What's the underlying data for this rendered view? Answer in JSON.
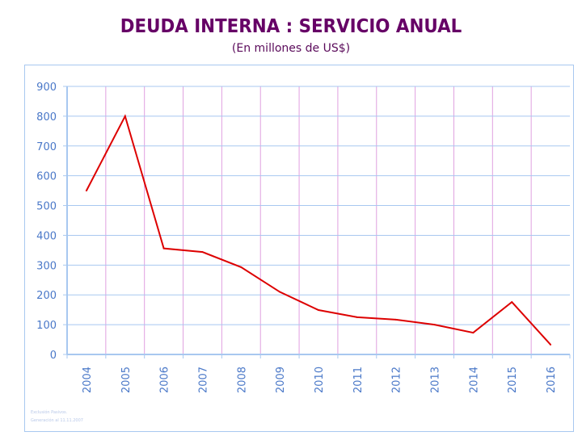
{
  "chart_data": {
    "type": "line",
    "title": "DEUDA INTERNA : SERVICIO ANUAL",
    "subtitle": "(En millones de US$)",
    "xlabel": "",
    "ylabel": "",
    "categories": [
      "2004",
      "2005",
      "2006",
      "2007",
      "2008",
      "2009",
      "2010",
      "2011",
      "2012",
      "2013",
      "2014",
      "2015",
      "2016"
    ],
    "series": [
      {
        "name": "Servicio anual",
        "values": [
          550,
          800,
          356,
          344,
          293,
          210,
          149,
          125,
          117,
          100,
          73,
          176,
          33
        ],
        "color": "#dd0000"
      }
    ],
    "ylim": [
      0,
      900
    ],
    "yticks": [
      0,
      100,
      200,
      300,
      400,
      500,
      600,
      700,
      800,
      900
    ],
    "grid": true
  },
  "footer": {
    "line1": "Exclusión Pasivos.",
    "line2": "Generación al 11.11.2007"
  }
}
